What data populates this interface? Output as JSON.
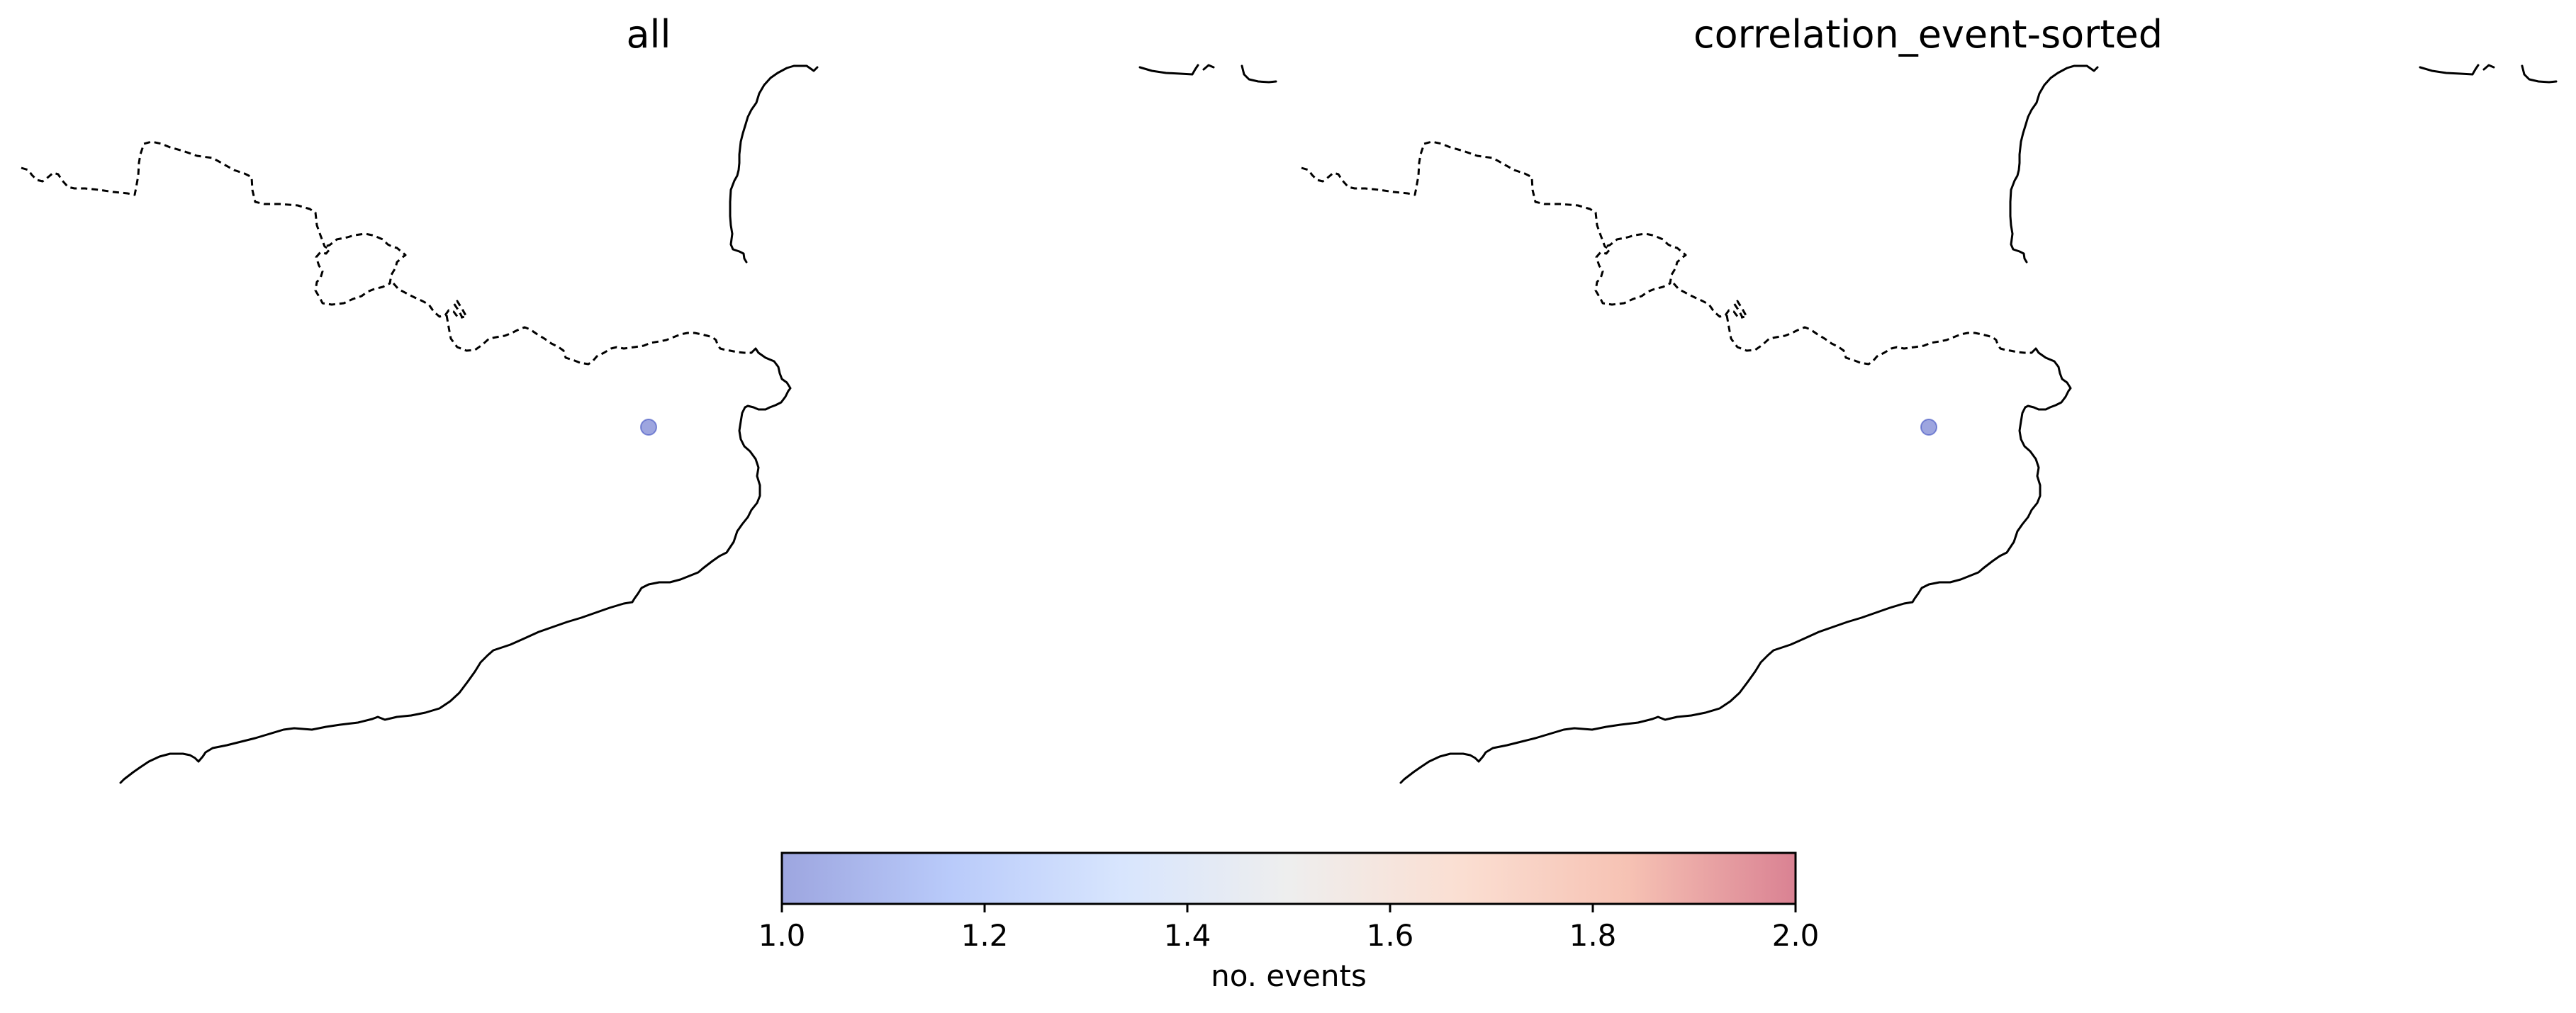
{
  "maps": [
    {
      "title": "all",
      "stations": [
        {
          "events": 1
        }
      ]
    },
    {
      "title": "correlation_event-sorted",
      "stations": [
        {
          "events": 1
        }
      ]
    }
  ],
  "colorbar": {
    "label": "no. events",
    "colormap": "coolwarm",
    "range": [
      1.0,
      2.0
    ],
    "ticks": [
      "1.0",
      "1.2",
      "1.4",
      "1.6",
      "1.8",
      "2.0"
    ],
    "colors": [
      "#3b4cc0",
      "#7396f5",
      "#b0cbfc",
      "#dddddd",
      "#f6bfa6",
      "#ee8669",
      "#b40426"
    ],
    "alpha": 0.5
  },
  "features": {
    "coastline_color": "#000000",
    "border_style": "dashed"
  }
}
